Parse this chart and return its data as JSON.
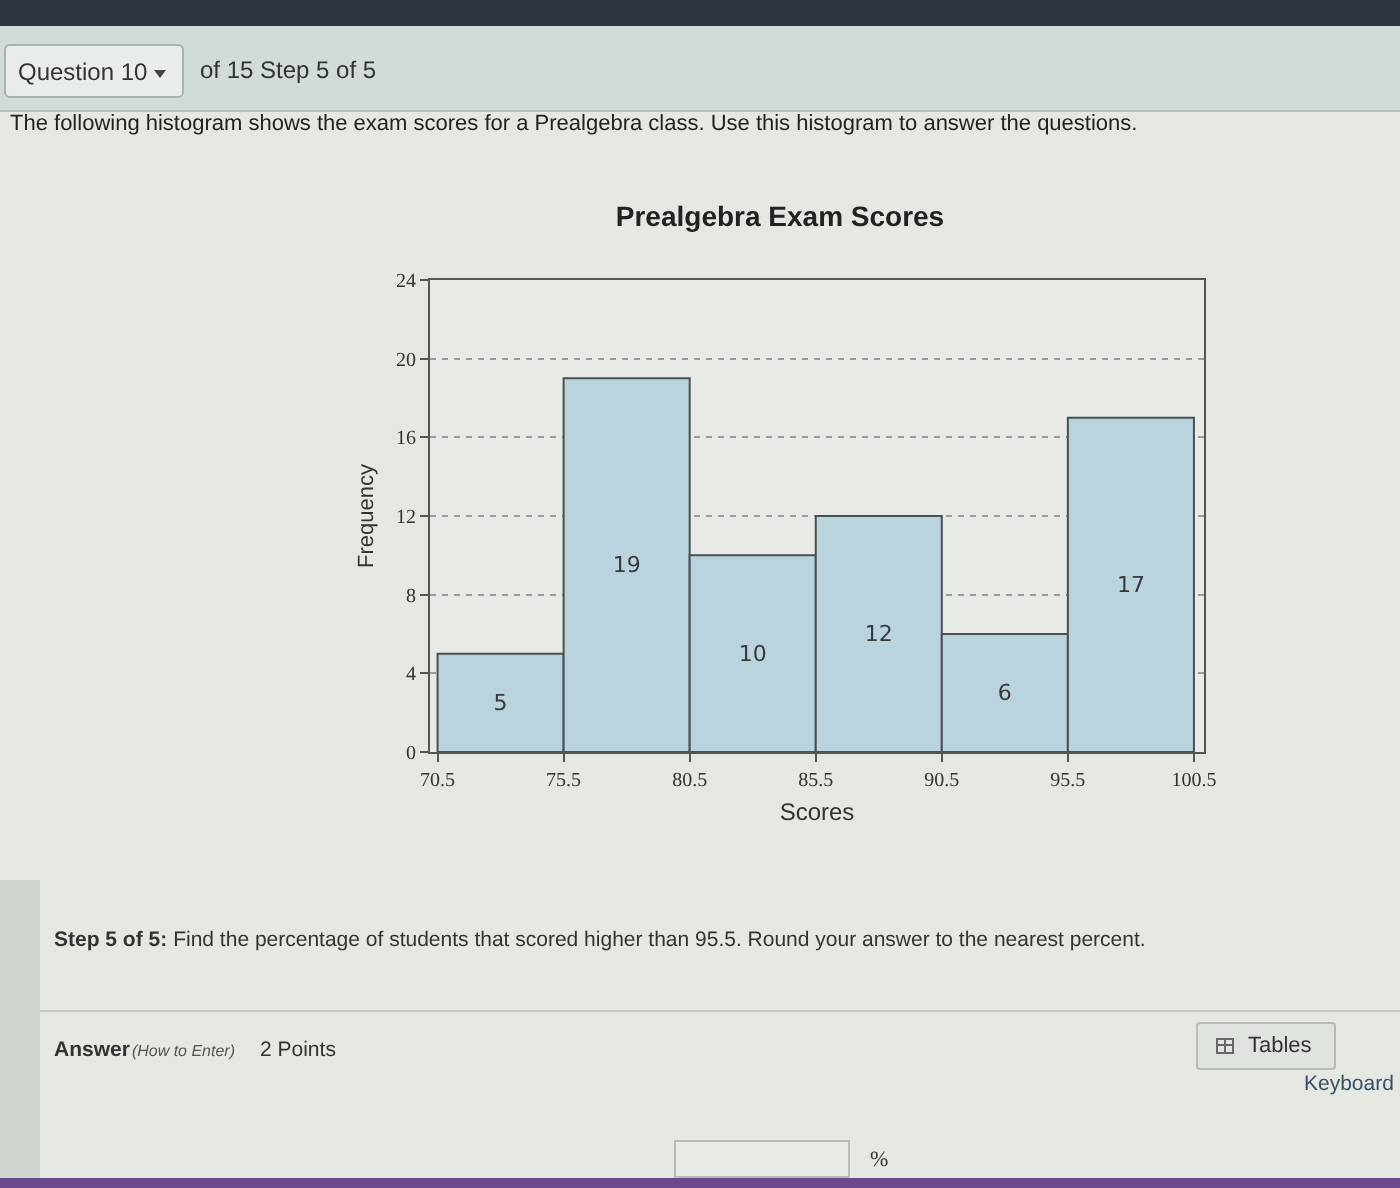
{
  "chart_data": {
    "type": "histogram",
    "title": "Prealgebra Exam Scores",
    "xlabel": "Scores",
    "ylabel": "Frequency",
    "bins": [
      70.5,
      75.5,
      80.5,
      85.5,
      90.5,
      95.5,
      100.5
    ],
    "values": [
      5,
      19,
      10,
      12,
      6,
      17
    ],
    "color": "#b9d4df",
    "xlim": [
      70.2,
      100.9
    ],
    "ylim": [
      0,
      24
    ],
    "xticks": [
      70.5,
      75.5,
      80.5,
      85.5,
      90.5,
      95.5,
      100.5
    ],
    "yticks": [
      0,
      4,
      8,
      12,
      16,
      20,
      24
    ],
    "grid": "y",
    "data_labels": true,
    "annotations": [
      "Question 10",
      "of 15 Step 5 of 5",
      "The following histogram shows the exam scores for a Prealgebra class. Use this histogram to answer the questions.",
      "Step 5 of 5:",
      "Find the percentage of students that scored higher than 95.5. Round your answer to the nearest percent.",
      "Answer",
      "(How to Enter)",
      "2 Points",
      "Tables",
      "Keyboard",
      "%"
    ]
  }
}
